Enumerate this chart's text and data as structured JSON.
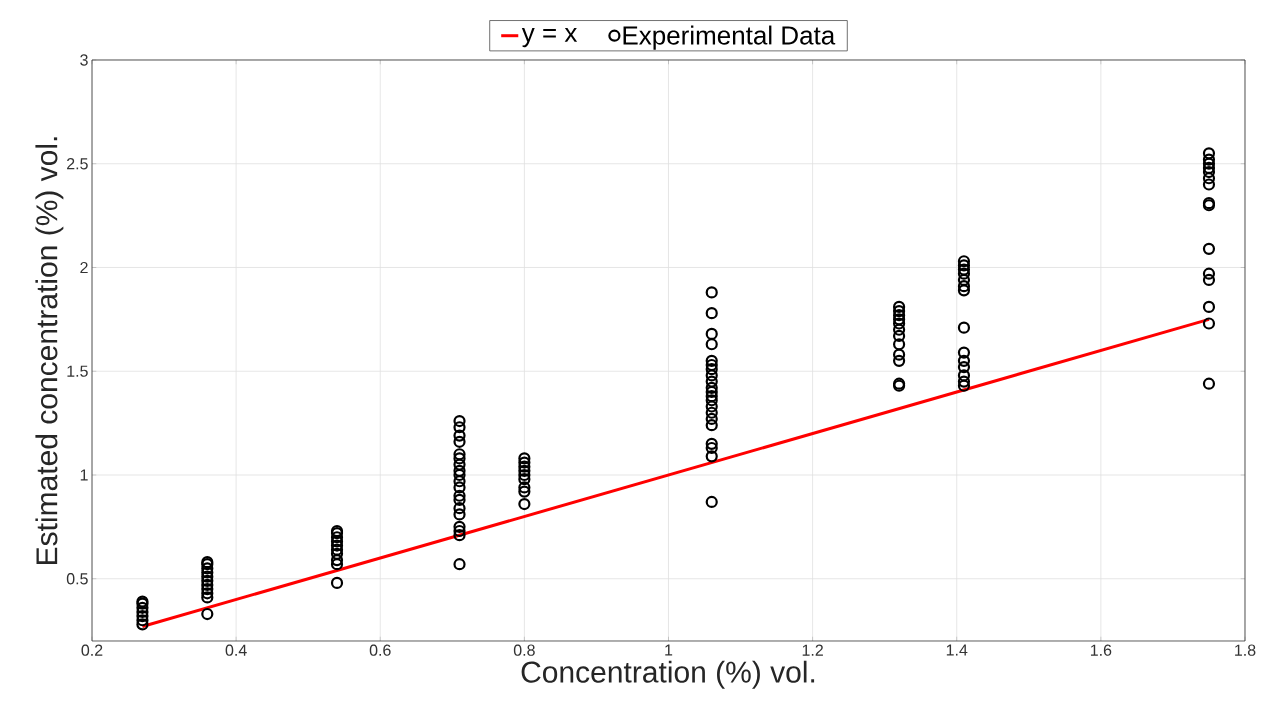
{
  "chart_data": {
    "type": "scatter",
    "xlabel": "Concentration (%) vol.",
    "ylabel": "Estimated concentration (%) vol.",
    "xlim": [
      0.2,
      1.8
    ],
    "ylim": [
      0.2,
      3
    ],
    "xticks": [
      0.2,
      0.4,
      0.6,
      0.8,
      1,
      1.2,
      1.4,
      1.6,
      1.8
    ],
    "yticks": [
      0.5,
      1,
      1.5,
      2,
      2.5,
      3
    ],
    "grid": true,
    "legend": "top",
    "series": [
      {
        "name": "y = x",
        "type": "line",
        "color": "#ff0000",
        "marker": "none",
        "line_style": "solid",
        "x": [
          0.27,
          1.75
        ],
        "values": [
          0.27,
          1.75
        ]
      },
      {
        "name": "Experimental Data",
        "color": "#000000",
        "marker": "circle",
        "x": [
          0.27,
          0.27,
          0.27,
          0.27,
          0.27,
          0.27,
          0.27,
          0.36,
          0.36,
          0.36,
          0.36,
          0.36,
          0.36,
          0.36,
          0.36,
          0.36,
          0.36,
          0.36,
          0.54,
          0.54,
          0.54,
          0.54,
          0.54,
          0.54,
          0.54,
          0.54,
          0.54,
          0.54,
          0.71,
          0.71,
          0.71,
          0.71,
          0.71,
          0.71,
          0.71,
          0.71,
          0.71,
          0.71,
          0.71,
          0.71,
          0.71,
          0.71,
          0.71,
          0.71,
          0.71,
          0.71,
          0.71,
          0.8,
          0.8,
          0.8,
          0.8,
          0.8,
          0.8,
          0.8,
          0.8,
          0.8,
          1.06,
          1.06,
          1.06,
          1.06,
          1.06,
          1.06,
          1.06,
          1.06,
          1.06,
          1.06,
          1.06,
          1.06,
          1.06,
          1.06,
          1.06,
          1.06,
          1.06,
          1.06,
          1.06,
          1.06,
          1.06,
          1.32,
          1.32,
          1.32,
          1.32,
          1.32,
          1.32,
          1.32,
          1.32,
          1.32,
          1.32,
          1.32,
          1.32,
          1.41,
          1.41,
          1.41,
          1.41,
          1.41,
          1.41,
          1.41,
          1.41,
          1.41,
          1.41,
          1.41,
          1.41,
          1.41,
          1.41,
          1.75,
          1.75,
          1.75,
          1.75,
          1.75,
          1.75,
          1.75,
          1.75,
          1.75,
          1.75,
          1.75,
          1.75,
          1.75,
          1.75,
          1.75
        ],
        "values": [
          0.28,
          0.3,
          0.32,
          0.34,
          0.36,
          0.38,
          0.39,
          0.33,
          0.41,
          0.43,
          0.45,
          0.47,
          0.49,
          0.51,
          0.53,
          0.55,
          0.57,
          0.58,
          0.48,
          0.57,
          0.59,
          0.62,
          0.64,
          0.66,
          0.68,
          0.7,
          0.72,
          0.73,
          0.57,
          0.71,
          0.73,
          0.75,
          0.81,
          0.84,
          0.88,
          0.9,
          0.94,
          0.97,
          1.0,
          1.02,
          1.05,
          1.08,
          1.1,
          1.16,
          1.19,
          1.23,
          1.26,
          0.86,
          0.92,
          0.94,
          0.98,
          1.0,
          1.02,
          1.04,
          1.06,
          1.08,
          0.87,
          1.09,
          1.13,
          1.15,
          1.24,
          1.27,
          1.3,
          1.33,
          1.36,
          1.38,
          1.4,
          1.42,
          1.45,
          1.48,
          1.51,
          1.53,
          1.55,
          1.63,
          1.68,
          1.78,
          1.88,
          1.43,
          1.44,
          1.55,
          1.58,
          1.63,
          1.67,
          1.7,
          1.73,
          1.75,
          1.77,
          1.79,
          1.81,
          1.43,
          1.45,
          1.48,
          1.52,
          1.55,
          1.59,
          1.71,
          1.89,
          1.91,
          1.94,
          1.97,
          1.99,
          2.01,
          2.03,
          1.44,
          1.73,
          1.81,
          1.94,
          1.97,
          2.09,
          2.3,
          2.31,
          2.4,
          2.43,
          2.46,
          2.48,
          2.5,
          2.52,
          2.55
        ]
      }
    ]
  }
}
